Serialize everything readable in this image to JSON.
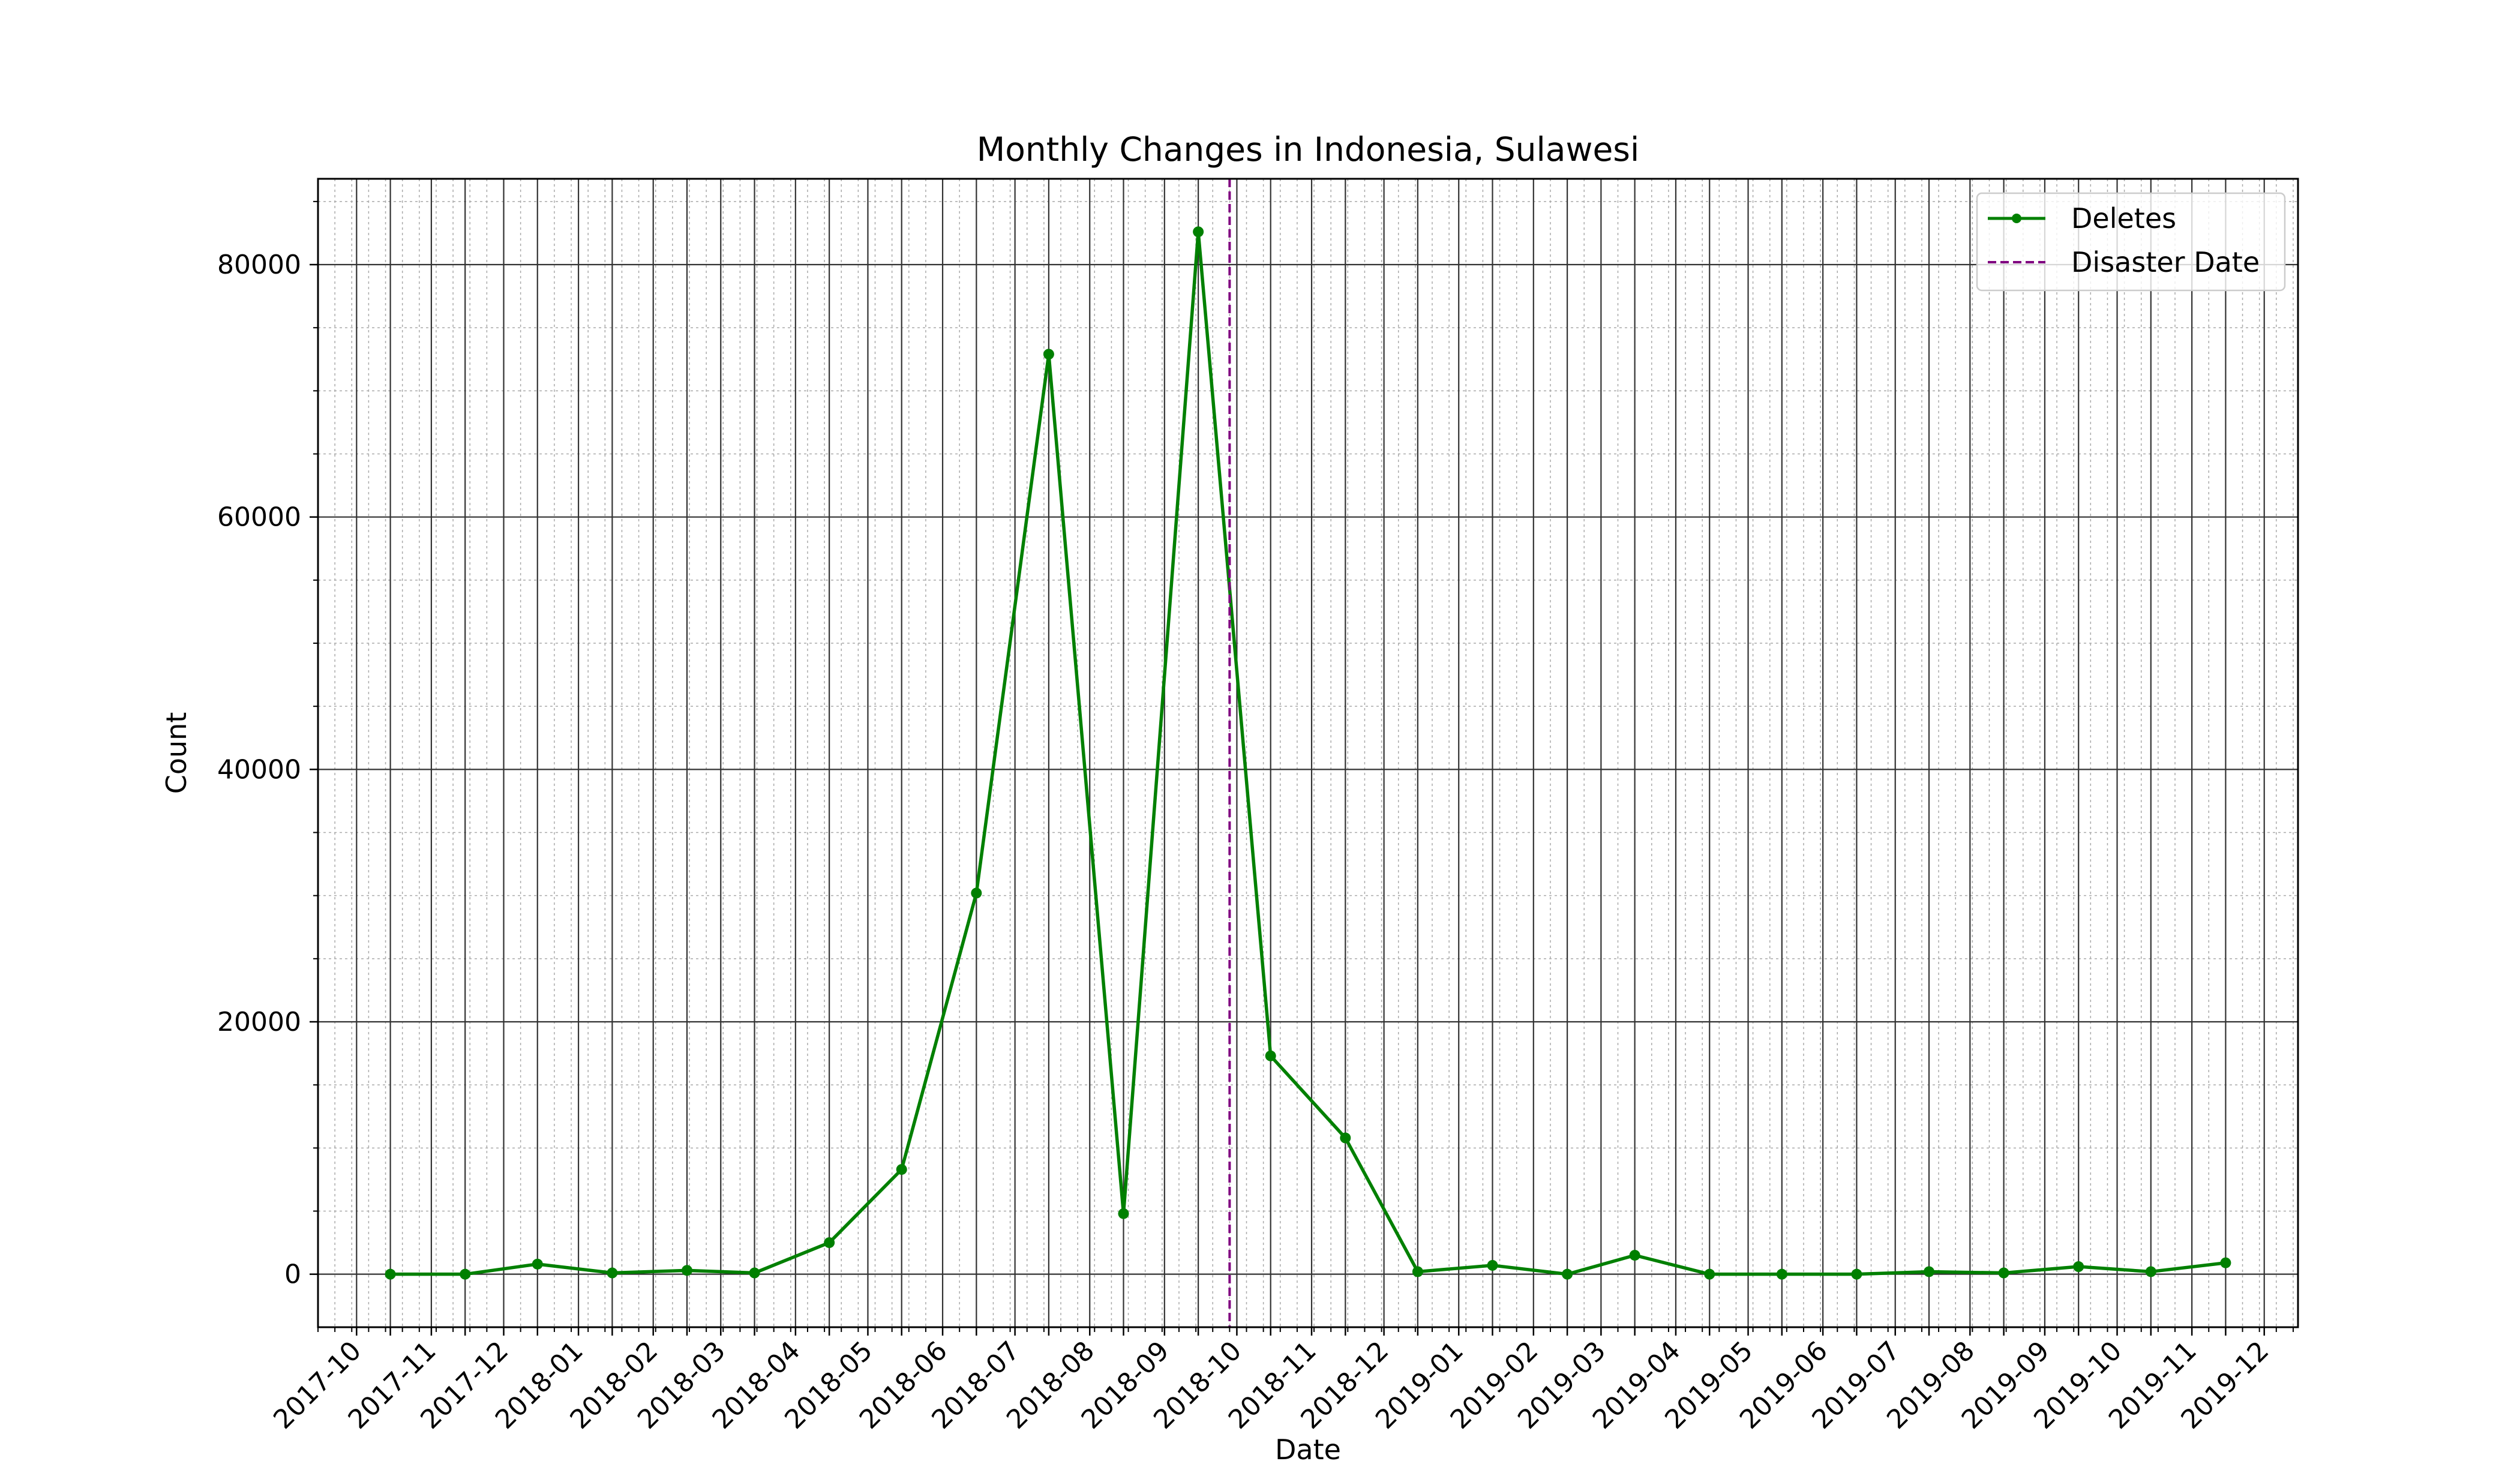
{
  "chart_data": {
    "type": "line",
    "title": "Monthly Changes in Indonesia, Sulawesi",
    "xlabel": "Date",
    "ylabel": "Count",
    "x": [
      "2017-10-15",
      "2017-11-15",
      "2017-12-15",
      "2018-01-15",
      "2018-02-15",
      "2018-03-15",
      "2018-04-15",
      "2018-05-15",
      "2018-06-15",
      "2018-07-15",
      "2018-08-15",
      "2018-09-15",
      "2018-10-15",
      "2018-11-15",
      "2018-12-15",
      "2019-01-15",
      "2019-02-15",
      "2019-03-15",
      "2019-04-15",
      "2019-05-15",
      "2019-06-15",
      "2019-07-15",
      "2019-08-15",
      "2019-09-15",
      "2019-10-15",
      "2019-11-15"
    ],
    "series": [
      {
        "name": "Deletes",
        "color": "#008000",
        "values": [
          0,
          0,
          800,
          100,
          300,
          100,
          2500,
          8300,
          30200,
          72900,
          4800,
          82600,
          17300,
          10800,
          200,
          700,
          0,
          1500,
          0,
          0,
          0,
          200,
          100,
          600,
          200,
          900
        ]
      }
    ],
    "vline": {
      "name": "Disaster Date",
      "date": "2018-09-28",
      "color": "#800080"
    },
    "xticks": [
      "2017-10",
      "2017-11",
      "2017-12",
      "2018-01",
      "2018-02",
      "2018-03",
      "2018-04",
      "2018-05",
      "2018-06",
      "2018-07",
      "2018-08",
      "2018-09",
      "2018-10",
      "2018-11",
      "2018-12",
      "2019-01",
      "2019-02",
      "2019-03",
      "2019-04",
      "2019-05",
      "2019-06",
      "2019-07",
      "2019-08",
      "2019-09",
      "2019-10",
      "2019-11",
      "2019-12"
    ],
    "yticks": [
      0,
      20000,
      40000,
      60000,
      80000
    ],
    "xlim": [
      "2017-09-15",
      "2019-12-15"
    ],
    "ylim": [
      -4200,
      86800
    ],
    "grid": true,
    "legend_position": "top-right"
  }
}
